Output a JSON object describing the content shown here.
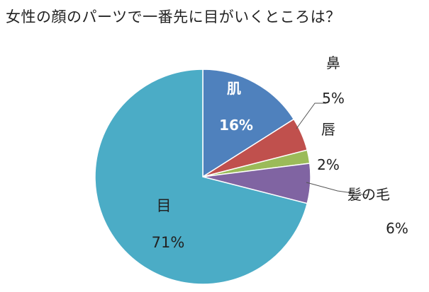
{
  "title": "女性の顔のパーツで一番先に目がいくところは？",
  "chart_data": {
    "type": "pie",
    "title": "女性の顔のパーツで一番先に目がいくところは？",
    "slices": [
      {
        "label": "肌",
        "value": 16,
        "value_label": "16%",
        "color": "#4f81bd"
      },
      {
        "label": "鼻",
        "value": 5,
        "value_label": "5%",
        "color": "#c0504d"
      },
      {
        "label": "唇",
        "value": 2,
        "value_label": "2%",
        "color": "#9bbb59"
      },
      {
        "label": "髪の毛",
        "value": 6,
        "value_label": "6%",
        "color": "#8064a2"
      },
      {
        "label": "目",
        "value": 71,
        "value_label": "71%",
        "color": "#4bacc6"
      }
    ],
    "start_angle": "12 o'clock",
    "direction": "clockwise"
  }
}
